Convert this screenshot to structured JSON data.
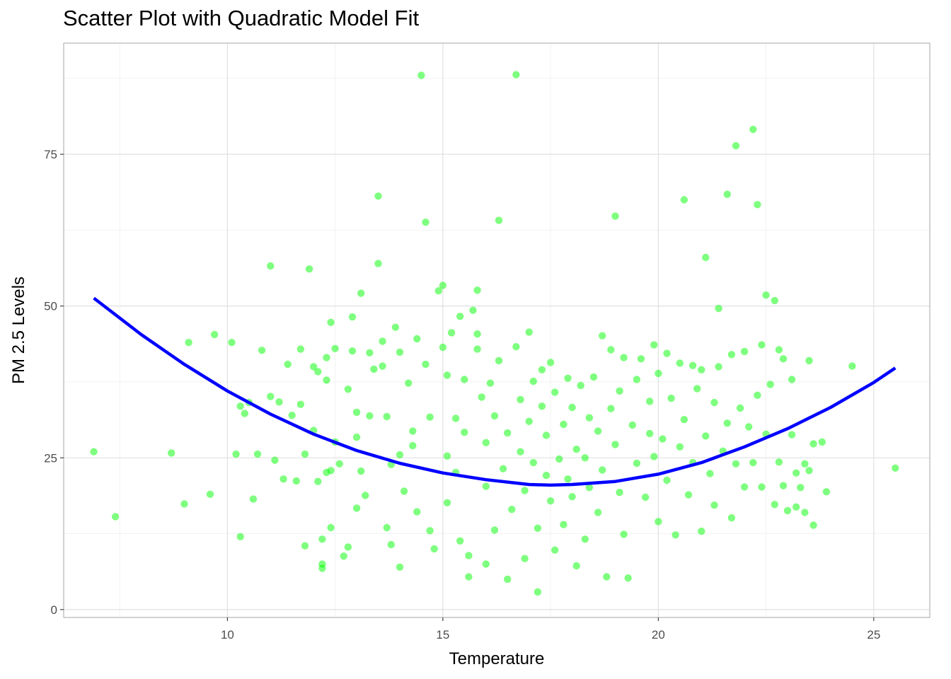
{
  "chart_data": {
    "type": "scatter",
    "title": "Scatter Plot with Quadratic Model Fit",
    "xlabel": "Temperature",
    "ylabel": "PM 2.5 Levels",
    "xlim": [
      6.2,
      26.3
    ],
    "ylim": [
      -1.3,
      93.3
    ],
    "x_ticks": [
      10,
      15,
      20,
      25
    ],
    "y_ticks": [
      0,
      25,
      50,
      75
    ],
    "grid": true,
    "colors": {
      "points": "#00ff00",
      "fit_line": "#0000ff",
      "panel_border": "#b3b3b3",
      "grid_major": "#dedede",
      "grid_minor": "#efefef"
    },
    "series": [
      {
        "type": "scatter",
        "opacity": 0.5,
        "points": [
          [
            6.9,
            26.0
          ],
          [
            7.4,
            15.3
          ],
          [
            8.7,
            25.8
          ],
          [
            9.0,
            17.4
          ],
          [
            9.1,
            44.0
          ],
          [
            9.6,
            19.0
          ],
          [
            9.7,
            45.3
          ],
          [
            10.1,
            44.0
          ],
          [
            10.2,
            25.6
          ],
          [
            10.3,
            33.5
          ],
          [
            10.3,
            12.0
          ],
          [
            10.4,
            32.3
          ],
          [
            10.5,
            34.1
          ],
          [
            10.6,
            18.2
          ],
          [
            10.7,
            25.6
          ],
          [
            10.8,
            42.7
          ],
          [
            11.0,
            56.6
          ],
          [
            11.0,
            35.1
          ],
          [
            11.1,
            24.6
          ],
          [
            11.2,
            34.2
          ],
          [
            11.3,
            21.5
          ],
          [
            11.4,
            40.4
          ],
          [
            11.5,
            32.0
          ],
          [
            11.6,
            21.2
          ],
          [
            11.7,
            42.9
          ],
          [
            11.7,
            33.8
          ],
          [
            11.8,
            25.6
          ],
          [
            11.8,
            10.5
          ],
          [
            11.9,
            56.1
          ],
          [
            12.0,
            29.5
          ],
          [
            12.0,
            40.0
          ],
          [
            12.1,
            39.2
          ],
          [
            12.1,
            21.1
          ],
          [
            12.2,
            11.6
          ],
          [
            12.2,
            7.5
          ],
          [
            12.2,
            6.8
          ],
          [
            12.3,
            41.5
          ],
          [
            12.3,
            37.8
          ],
          [
            12.3,
            22.6
          ],
          [
            12.4,
            47.3
          ],
          [
            12.4,
            22.9
          ],
          [
            12.4,
            13.5
          ],
          [
            12.5,
            43.0
          ],
          [
            12.5,
            27.6
          ],
          [
            12.6,
            24.0
          ],
          [
            12.7,
            8.8
          ],
          [
            12.8,
            10.3
          ],
          [
            12.8,
            36.3
          ],
          [
            12.9,
            42.6
          ],
          [
            12.9,
            48.2
          ],
          [
            13.0,
            28.4
          ],
          [
            13.0,
            32.5
          ],
          [
            13.0,
            16.7
          ],
          [
            13.1,
            52.1
          ],
          [
            13.1,
            22.8
          ],
          [
            13.2,
            18.8
          ],
          [
            13.3,
            42.3
          ],
          [
            13.3,
            31.9
          ],
          [
            13.4,
            39.6
          ],
          [
            13.5,
            57.0
          ],
          [
            13.5,
            68.1
          ],
          [
            13.6,
            40.1
          ],
          [
            13.6,
            44.2
          ],
          [
            13.7,
            31.8
          ],
          [
            13.7,
            13.5
          ],
          [
            13.8,
            10.7
          ],
          [
            13.8,
            23.9
          ],
          [
            13.9,
            46.5
          ],
          [
            14.0,
            42.4
          ],
          [
            14.0,
            25.5
          ],
          [
            14.0,
            7.0
          ],
          [
            14.1,
            19.5
          ],
          [
            14.2,
            37.3
          ],
          [
            14.3,
            29.4
          ],
          [
            14.3,
            27.0
          ],
          [
            14.4,
            16.1
          ],
          [
            14.4,
            44.6
          ],
          [
            14.5,
            88.0
          ],
          [
            14.6,
            63.8
          ],
          [
            14.6,
            40.4
          ],
          [
            14.7,
            31.7
          ],
          [
            14.7,
            13.0
          ],
          [
            14.8,
            10.0
          ],
          [
            14.9,
            52.5
          ],
          [
            15.0,
            53.4
          ],
          [
            15.0,
            43.2
          ],
          [
            15.1,
            38.6
          ],
          [
            15.1,
            25.3
          ],
          [
            15.1,
            17.6
          ],
          [
            15.2,
            45.6
          ],
          [
            15.3,
            31.5
          ],
          [
            15.3,
            22.6
          ],
          [
            15.4,
            48.3
          ],
          [
            15.4,
            11.3
          ],
          [
            15.5,
            37.9
          ],
          [
            15.5,
            29.2
          ],
          [
            15.6,
            8.9
          ],
          [
            15.6,
            5.4
          ],
          [
            15.7,
            49.3
          ],
          [
            15.8,
            52.6
          ],
          [
            15.8,
            45.4
          ],
          [
            15.8,
            42.9
          ],
          [
            15.9,
            35.0
          ],
          [
            16.0,
            27.5
          ],
          [
            16.0,
            20.3
          ],
          [
            16.0,
            7.5
          ],
          [
            16.1,
            37.3
          ],
          [
            16.2,
            31.9
          ],
          [
            16.2,
            13.1
          ],
          [
            16.3,
            41.0
          ],
          [
            16.3,
            64.1
          ],
          [
            16.4,
            23.2
          ],
          [
            16.5,
            5.0
          ],
          [
            16.5,
            29.1
          ],
          [
            16.6,
            16.5
          ],
          [
            16.7,
            88.1
          ],
          [
            16.7,
            43.3
          ],
          [
            16.8,
            34.6
          ],
          [
            16.8,
            26.0
          ],
          [
            16.9,
            19.6
          ],
          [
            16.9,
            8.4
          ],
          [
            17.0,
            45.7
          ],
          [
            17.0,
            31.0
          ],
          [
            17.1,
            37.6
          ],
          [
            17.1,
            24.2
          ],
          [
            17.2,
            13.4
          ],
          [
            17.2,
            2.9
          ],
          [
            17.3,
            39.5
          ],
          [
            17.3,
            33.5
          ],
          [
            17.4,
            28.7
          ],
          [
            17.4,
            22.1
          ],
          [
            17.5,
            17.9
          ],
          [
            17.5,
            40.7
          ],
          [
            17.6,
            9.8
          ],
          [
            17.6,
            35.8
          ],
          [
            17.7,
            24.8
          ],
          [
            17.8,
            30.5
          ],
          [
            17.8,
            14.0
          ],
          [
            17.9,
            21.5
          ],
          [
            17.9,
            38.1
          ],
          [
            18.0,
            33.3
          ],
          [
            18.0,
            18.6
          ],
          [
            18.1,
            26.4
          ],
          [
            18.1,
            7.2
          ],
          [
            18.2,
            36.9
          ],
          [
            18.3,
            25.0
          ],
          [
            18.3,
            11.6
          ],
          [
            18.4,
            31.6
          ],
          [
            18.4,
            20.1
          ],
          [
            18.5,
            38.3
          ],
          [
            18.6,
            29.4
          ],
          [
            18.6,
            16.0
          ],
          [
            18.7,
            45.1
          ],
          [
            18.7,
            23.0
          ],
          [
            18.8,
            5.4
          ],
          [
            18.9,
            42.8
          ],
          [
            18.9,
            33.1
          ],
          [
            19.0,
            64.8
          ],
          [
            19.0,
            27.2
          ],
          [
            19.1,
            36.0
          ],
          [
            19.1,
            19.3
          ],
          [
            19.2,
            41.5
          ],
          [
            19.2,
            12.4
          ],
          [
            19.3,
            5.2
          ],
          [
            19.4,
            30.4
          ],
          [
            19.5,
            37.9
          ],
          [
            19.5,
            24.1
          ],
          [
            19.6,
            41.3
          ],
          [
            19.7,
            18.5
          ],
          [
            19.8,
            29.0
          ],
          [
            19.8,
            34.3
          ],
          [
            19.9,
            43.6
          ],
          [
            19.9,
            25.2
          ],
          [
            20.0,
            38.9
          ],
          [
            20.0,
            14.5
          ],
          [
            20.1,
            28.1
          ],
          [
            20.2,
            42.2
          ],
          [
            20.2,
            21.3
          ],
          [
            20.3,
            34.8
          ],
          [
            20.4,
            12.3
          ],
          [
            20.5,
            40.6
          ],
          [
            20.5,
            26.8
          ],
          [
            20.6,
            31.3
          ],
          [
            20.6,
            67.5
          ],
          [
            20.7,
            18.9
          ],
          [
            20.8,
            40.2
          ],
          [
            20.8,
            24.2
          ],
          [
            20.9,
            36.4
          ],
          [
            21.0,
            12.9
          ],
          [
            21.0,
            39.5
          ],
          [
            21.1,
            58.0
          ],
          [
            21.1,
            28.6
          ],
          [
            21.2,
            22.4
          ],
          [
            21.3,
            34.1
          ],
          [
            21.3,
            17.2
          ],
          [
            21.4,
            40.0
          ],
          [
            21.4,
            49.6
          ],
          [
            21.5,
            26.1
          ],
          [
            21.6,
            30.7
          ],
          [
            21.6,
            68.4
          ],
          [
            21.7,
            42.0
          ],
          [
            21.7,
            15.1
          ],
          [
            21.8,
            76.4
          ],
          [
            21.8,
            24.0
          ],
          [
            21.9,
            33.2
          ],
          [
            22.0,
            20.2
          ],
          [
            22.0,
            42.5
          ],
          [
            22.1,
            30.1
          ],
          [
            22.2,
            79.1
          ],
          [
            22.2,
            24.2
          ],
          [
            22.3,
            66.7
          ],
          [
            22.3,
            35.3
          ],
          [
            22.4,
            43.6
          ],
          [
            22.4,
            20.2
          ],
          [
            22.5,
            51.8
          ],
          [
            22.5,
            28.9
          ],
          [
            22.6,
            37.1
          ],
          [
            22.7,
            50.9
          ],
          [
            22.7,
            17.3
          ],
          [
            22.8,
            42.8
          ],
          [
            22.8,
            24.3
          ],
          [
            22.9,
            20.4
          ],
          [
            22.9,
            41.3
          ],
          [
            23.0,
            16.3
          ],
          [
            23.1,
            37.9
          ],
          [
            23.1,
            28.8
          ],
          [
            23.2,
            22.5
          ],
          [
            23.2,
            16.9
          ],
          [
            23.3,
            20.1
          ],
          [
            23.4,
            24.0
          ],
          [
            23.4,
            16.0
          ],
          [
            23.5,
            41.0
          ],
          [
            23.5,
            22.9
          ],
          [
            23.6,
            27.3
          ],
          [
            23.6,
            13.9
          ],
          [
            23.8,
            27.6
          ],
          [
            23.9,
            19.4
          ],
          [
            24.5,
            40.1
          ],
          [
            25.5,
            23.3
          ]
        ]
      },
      {
        "type": "line",
        "model": "quadratic",
        "x": [
          6.9,
          8.0,
          9.0,
          10.0,
          11.0,
          12.0,
          13.0,
          14.0,
          15.0,
          16.0,
          17.0,
          17.5,
          18.0,
          19.0,
          20.0,
          21.0,
          22.0,
          23.0,
          24.0,
          25.0,
          25.5
        ],
        "y": [
          51.3,
          45.3,
          40.4,
          36.0,
          32.2,
          28.9,
          26.2,
          24.1,
          22.5,
          21.4,
          20.6,
          20.5,
          20.6,
          21.1,
          22.3,
          24.2,
          26.8,
          29.8,
          33.3,
          37.4,
          39.8
        ]
      }
    ]
  }
}
